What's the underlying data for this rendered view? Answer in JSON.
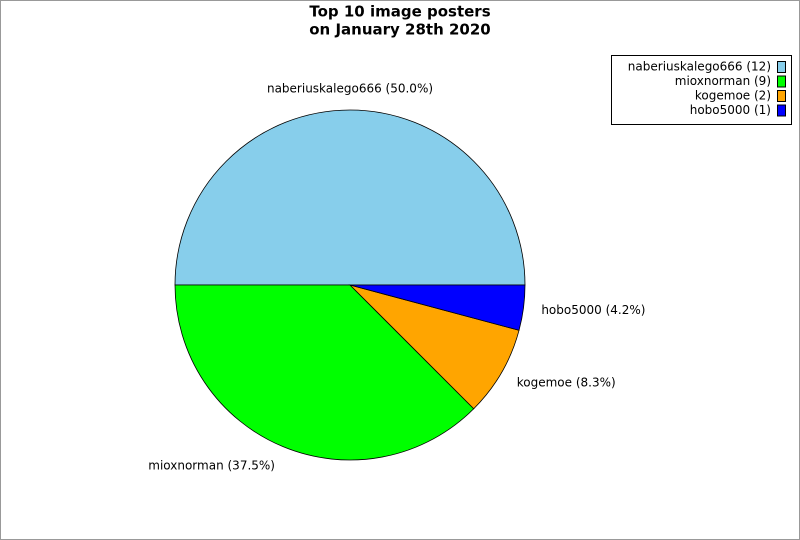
{
  "chart_data": {
    "type": "pie",
    "title": [
      "Top 10 image posters",
      "on January 28th 2020"
    ],
    "categories": [
      "naberiuskalego666 (12)",
      "mioxnorman (9)",
      "kogemoe (2)",
      "hobo5000 (1)"
    ],
    "values": [
      12,
      9,
      2,
      1
    ],
    "value_labels": [
      "naberiuskalego666 (50.0%)",
      "mioxnorman (37.5%)",
      "kogemoe (8.3%)",
      "hobo5000 (4.2%)"
    ],
    "colors": [
      "#87ceeb",
      "#00ff00",
      "#ffa500",
      "#0000ff"
    ],
    "legend": "upper right"
  }
}
